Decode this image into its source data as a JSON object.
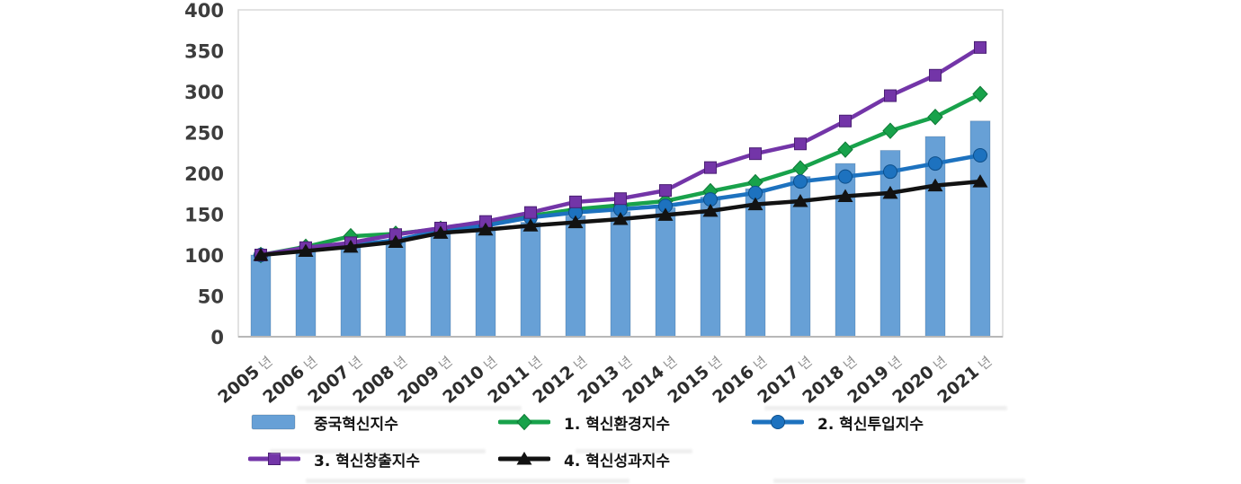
{
  "figure": {
    "background": "#ffffff"
  },
  "chart_data": {
    "type": "combo-bar-line",
    "title": "",
    "xlabel": "",
    "ylabel": "",
    "categories": [
      "2005 년",
      "2006 년",
      "2007 년",
      "2008 년",
      "2009 년",
      "2010 년",
      "2011 년",
      "2012 년",
      "2013 년",
      "2014 년",
      "2015 년",
      "2016 년",
      "2017 년",
      "2018 년",
      "2019 년",
      "2020 년",
      "2021 년"
    ],
    "ylim": [
      0,
      400
    ],
    "yticks": [
      0,
      50,
      100,
      150,
      200,
      250,
      300,
      350,
      400
    ],
    "grid": false,
    "legend_position": "bottom",
    "series": [
      {
        "name": "중국혁신지수",
        "type": "bar",
        "marker": "bar",
        "color": "#67a0d6",
        "values": [
          100,
          106,
          112,
          117,
          126,
          132,
          140,
          148,
          153,
          158,
          171,
          181,
          196,
          212,
          228,
          245,
          264
        ]
      },
      {
        "name": "1. 혁신환경지수",
        "type": "line",
        "marker": "diamond",
        "color": "#18a24b",
        "values": [
          100,
          110,
          123,
          126,
          132,
          138,
          148,
          156,
          161,
          166,
          178,
          189,
          206,
          229,
          252,
          269,
          297
        ]
      },
      {
        "name": "2. 혁신투입지수",
        "type": "line",
        "marker": "circle",
        "color": "#1d72bf",
        "values": [
          100,
          107,
          112,
          118,
          130,
          136,
          146,
          152,
          156,
          160,
          168,
          176,
          190,
          196,
          202,
          212,
          222
        ]
      },
      {
        "name": "3. 혁신창출지수",
        "type": "line",
        "marker": "square",
        "color": "#7335a8",
        "values": [
          100,
          109,
          115,
          125,
          133,
          141,
          152,
          165,
          169,
          179,
          207,
          224,
          236,
          264,
          295,
          320,
          354
        ]
      },
      {
        "name": "4. 혁신성과지수",
        "type": "line",
        "marker": "triangle",
        "color": "#121212",
        "values": [
          100,
          105,
          110,
          116,
          127,
          131,
          136,
          140,
          144,
          149,
          154,
          162,
          166,
          172,
          176,
          185,
          190
        ]
      }
    ]
  },
  "legend": {
    "rows": [
      [
        0,
        1,
        2
      ],
      [
        3,
        4
      ]
    ]
  }
}
